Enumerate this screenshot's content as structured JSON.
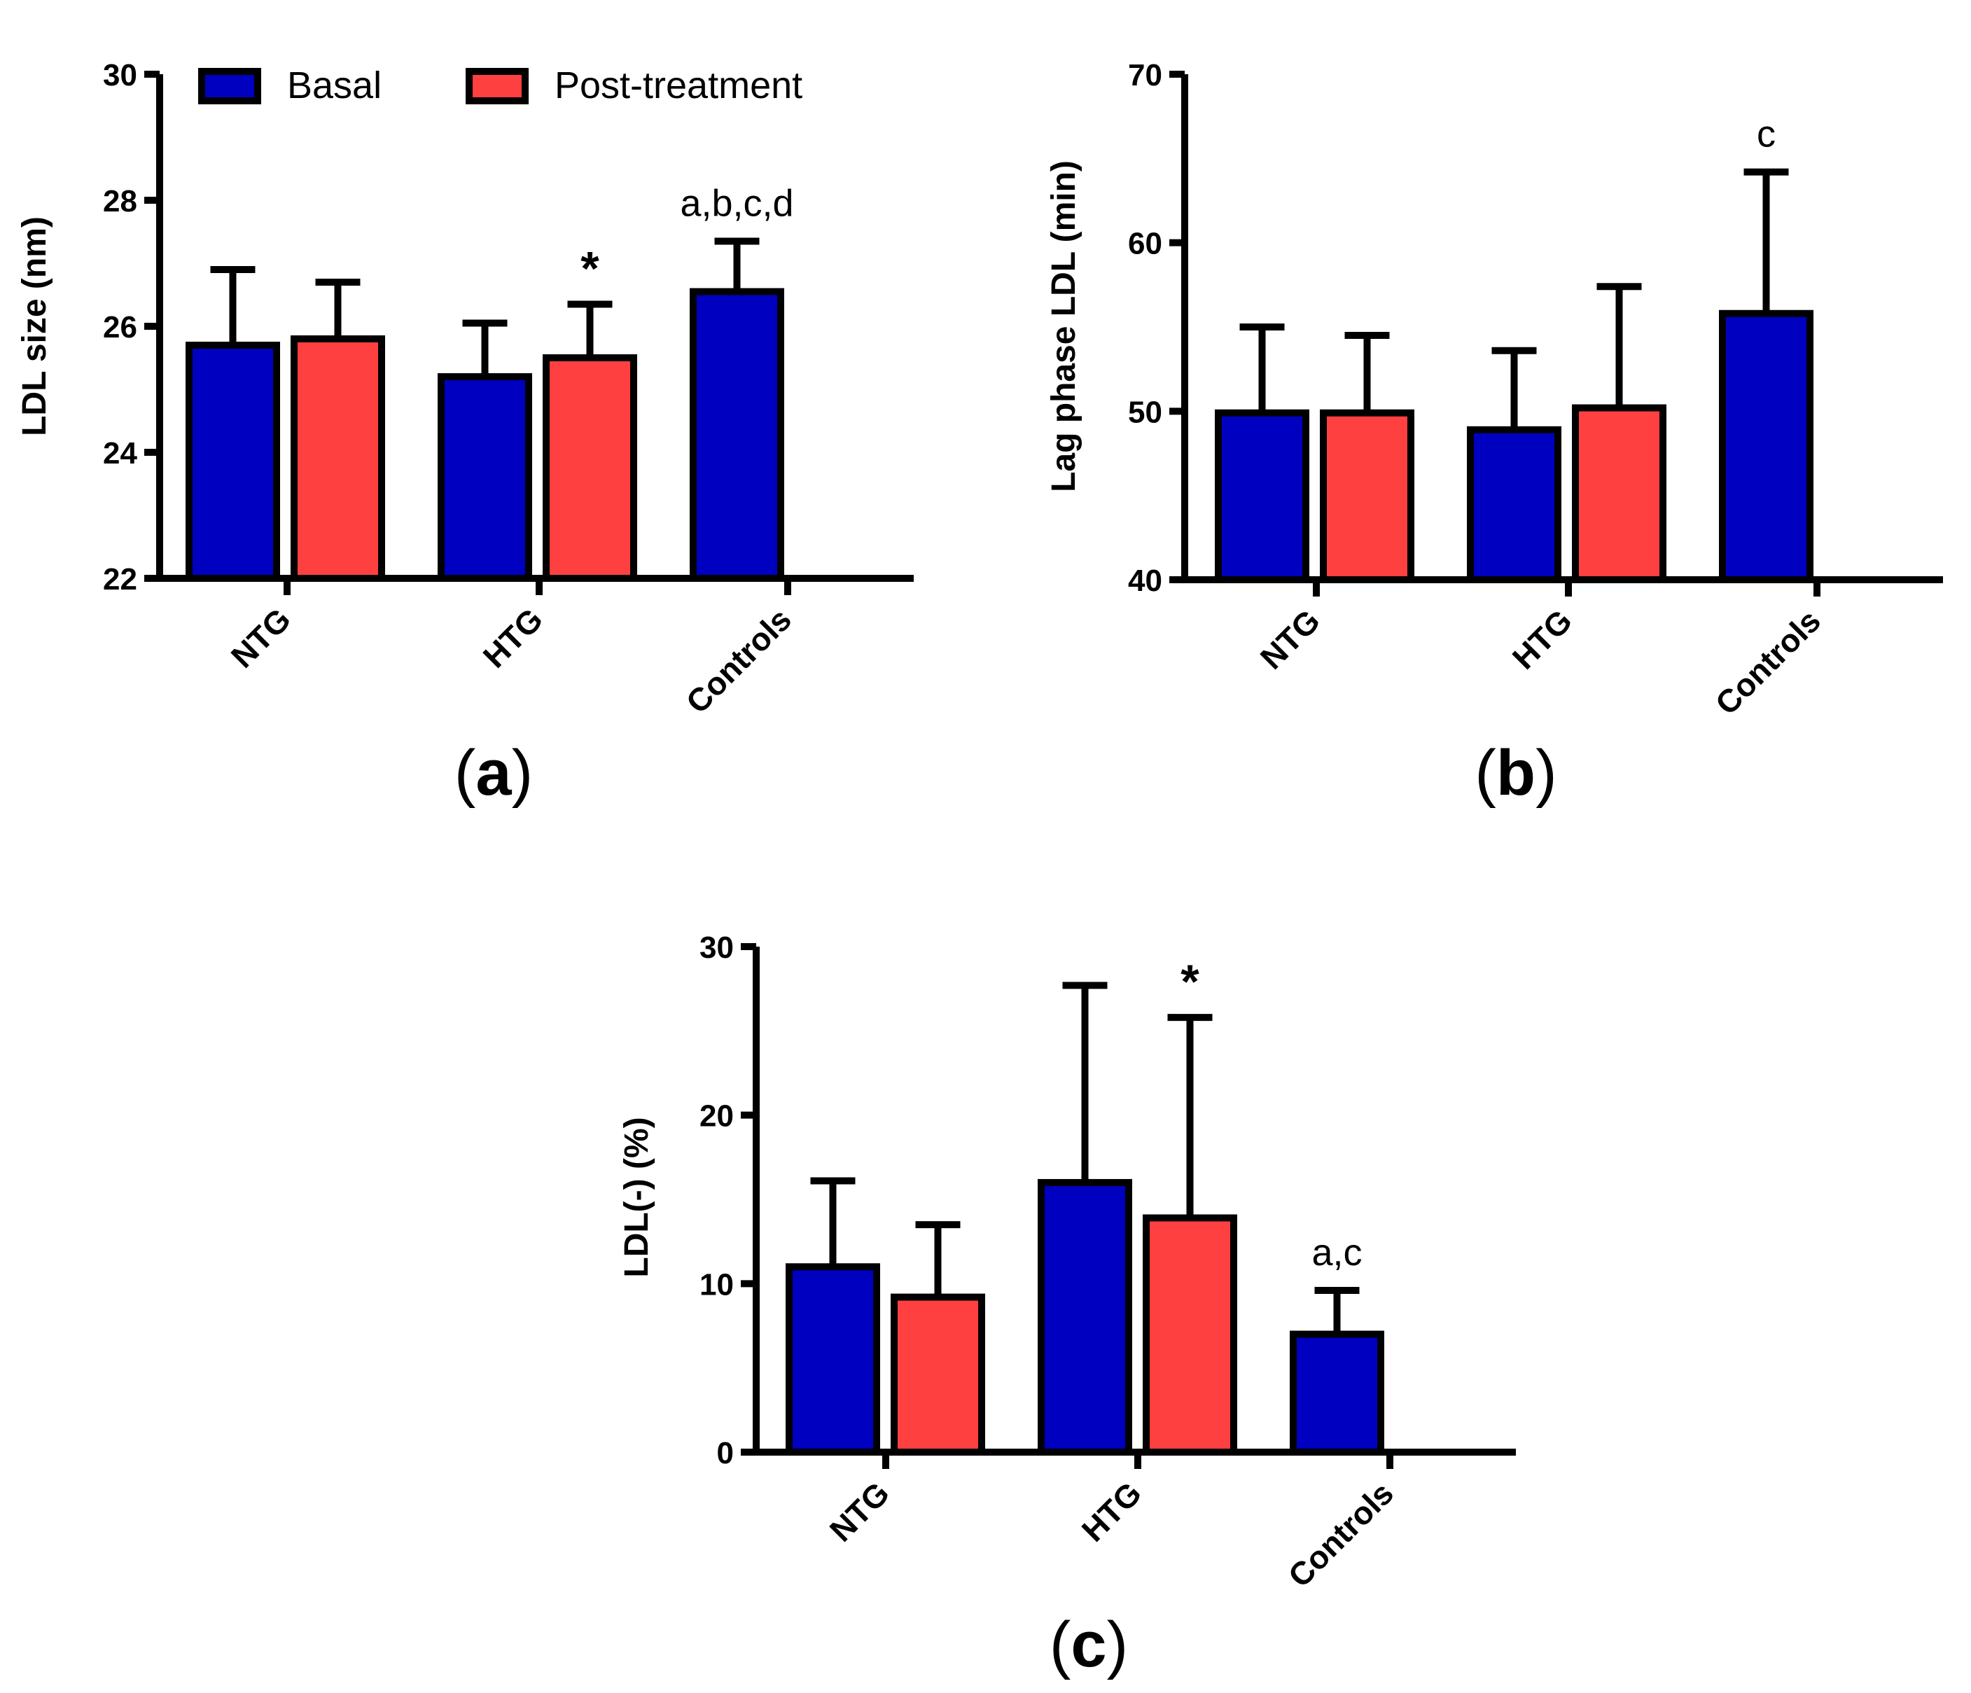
{
  "colors": {
    "Basal": "#0000C0",
    "Post-treatment": "#FF4040",
    "axis": "#000000"
  },
  "legend": {
    "items": [
      {
        "name": "Basal",
        "color": "#0000C0"
      },
      {
        "name": "Post-treatment",
        "color": "#FF4040"
      }
    ]
  },
  "chart_data": [
    {
      "type": "bar",
      "panel_label": "a",
      "title": "",
      "xlabel": "",
      "ylabel": "LDL size (nm)",
      "ylim": [
        22,
        30
      ],
      "yticks": [
        "22",
        "24",
        "26",
        "28",
        "30"
      ],
      "categories": [
        "NTG",
        "HTG",
        "Controls"
      ],
      "series": [
        {
          "name": "Basal",
          "values": [
            25.7,
            25.2,
            26.55
          ],
          "errors": [
            1.2,
            0.85,
            0.8
          ]
        },
        {
          "name": "Post-treatment",
          "values": [
            25.8,
            25.5,
            null
          ],
          "errors": [
            0.9,
            0.85,
            null
          ]
        }
      ],
      "annotations": [
        {
          "category": "HTG",
          "series": "Post-treatment",
          "text": "*"
        },
        {
          "category": "Controls",
          "series": "Basal",
          "text": "a,b,c,d"
        }
      ],
      "legend": "top-left"
    },
    {
      "type": "bar",
      "panel_label": "b",
      "title": "",
      "xlabel": "",
      "ylabel": "Lag phase LDL (min)",
      "ylim": [
        40,
        70
      ],
      "yticks": [
        "40",
        "50",
        "60",
        "70"
      ],
      "categories": [
        "NTG",
        "HTG",
        "Controls"
      ],
      "series": [
        {
          "name": "Basal",
          "values": [
            49.9,
            48.9,
            55.8
          ],
          "errors": [
            5.1,
            4.7,
            8.4
          ]
        },
        {
          "name": "Post-treatment",
          "values": [
            49.9,
            50.2,
            null
          ],
          "errors": [
            4.6,
            7.2,
            null
          ]
        }
      ],
      "annotations": [
        {
          "category": "Controls",
          "series": "Basal",
          "text": "c"
        }
      ]
    },
    {
      "type": "bar",
      "panel_label": "c",
      "title": "",
      "xlabel": "",
      "ylabel": "LDL(-) (%)",
      "ylim": [
        0,
        30
      ],
      "yticks": [
        "0",
        "10",
        "20",
        "30"
      ],
      "categories": [
        "NTG",
        "HTG",
        "Controls"
      ],
      "series": [
        {
          "name": "Basal",
          "values": [
            11.0,
            16.0,
            7.0
          ],
          "errors": [
            5.1,
            11.7,
            2.6
          ]
        },
        {
          "name": "Post-treatment",
          "values": [
            9.2,
            13.9,
            null
          ],
          "errors": [
            4.3,
            11.9,
            null
          ]
        }
      ],
      "annotations": [
        {
          "category": "HTG",
          "series": "Post-treatment",
          "text": "*"
        },
        {
          "category": "Controls",
          "series": "Basal",
          "text": "a,c"
        }
      ]
    }
  ]
}
